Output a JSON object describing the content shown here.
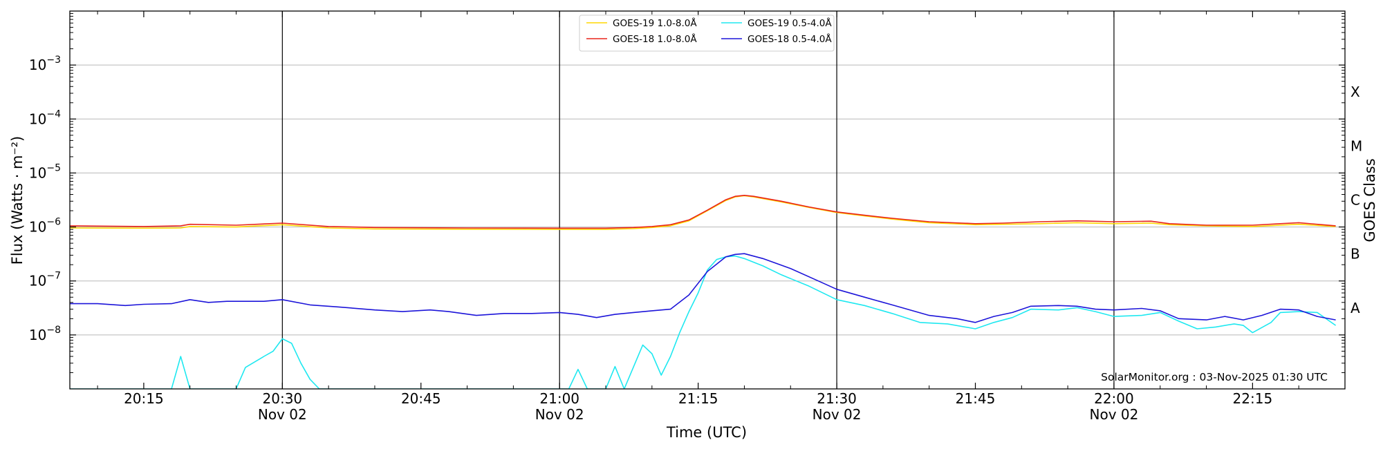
{
  "chart_data": {
    "type": "line",
    "xlabel": "Time (UTC)",
    "ylabel": "Flux (Watts · m⁻²)",
    "ylabel_right": "GOES Class",
    "x_range": [
      "2025-11-02 20:07",
      "2025-11-02 22:25"
    ],
    "y_scale": "log",
    "ylim": [
      1e-09,
      0.01
    ],
    "grid": "horizontal at decades",
    "legend_placement": "top-center",
    "x_ticks": [
      {
        "time": "20:15",
        "label": "20:15",
        "sub": ""
      },
      {
        "time": "20:30",
        "label": "20:30",
        "sub": "Nov 02"
      },
      {
        "time": "20:45",
        "label": "20:45",
        "sub": ""
      },
      {
        "time": "21:00",
        "label": "21:00",
        "sub": "Nov 02"
      },
      {
        "time": "21:15",
        "label": "21:15",
        "sub": ""
      },
      {
        "time": "21:30",
        "label": "21:30",
        "sub": "Nov 02"
      },
      {
        "time": "21:45",
        "label": "21:45",
        "sub": ""
      },
      {
        "time": "22:00",
        "label": "22:00",
        "sub": "Nov 02"
      },
      {
        "time": "22:15",
        "label": "22:15",
        "sub": ""
      }
    ],
    "vertical_lines": [
      "20:30",
      "21:00",
      "21:30",
      "22:00"
    ],
    "y_ticks": [
      {
        "base": "10",
        "exp": "−8",
        "value": 1e-08
      },
      {
        "base": "10",
        "exp": "−7",
        "value": 1e-07
      },
      {
        "base": "10",
        "exp": "−6",
        "value": 1e-06
      },
      {
        "base": "10",
        "exp": "−5",
        "value": 1e-05
      },
      {
        "base": "10",
        "exp": "−4",
        "value": 0.0001
      },
      {
        "base": "10",
        "exp": "−3",
        "value": 0.001
      }
    ],
    "goes_classes": [
      {
        "label": "A",
        "value": 3.16e-08
      },
      {
        "label": "B",
        "value": 3.16e-07
      },
      {
        "label": "C",
        "value": 3.16e-06
      },
      {
        "label": "M",
        "value": 3.16e-05
      },
      {
        "label": "X",
        "value": 0.000316
      }
    ],
    "watermark": "SolarMonitor.org : 03-Nov-2025 01:30 UTC",
    "series": [
      {
        "name": "GOES-19 1.0-8.0Å",
        "color": "#ffd700",
        "points": [
          [
            "20:07",
            9.6e-07
          ],
          [
            "20:15",
            9.5e-07
          ],
          [
            "20:19",
            9.6e-07
          ],
          [
            "20:20",
            1.02e-06
          ],
          [
            "20:25",
            1e-06
          ],
          [
            "20:30",
            1.1e-06
          ],
          [
            "20:35",
            9.6e-07
          ],
          [
            "20:40",
            9.2e-07
          ],
          [
            "20:50",
            9.1e-07
          ],
          [
            "21:00",
            9e-07
          ],
          [
            "21:05",
            9e-07
          ],
          [
            "21:08",
            9.3e-07
          ],
          [
            "21:10",
            9.8e-07
          ],
          [
            "21:12",
            1.05e-06
          ],
          [
            "21:14",
            1.3e-06
          ],
          [
            "21:16",
            2e-06
          ],
          [
            "21:18",
            3.1e-06
          ],
          [
            "21:19",
            3.6e-06
          ],
          [
            "21:20",
            3.8e-06
          ],
          [
            "21:21",
            3.6e-06
          ],
          [
            "21:24",
            2.9e-06
          ],
          [
            "21:27",
            2.3e-06
          ],
          [
            "21:30",
            1.85e-06
          ],
          [
            "21:33",
            1.6e-06
          ],
          [
            "21:36",
            1.4e-06
          ],
          [
            "21:40",
            1.2e-06
          ],
          [
            "21:45",
            1.1e-06
          ],
          [
            "21:48",
            1.12e-06
          ],
          [
            "21:52",
            1.15e-06
          ],
          [
            "21:56",
            1.2e-06
          ],
          [
            "22:00",
            1.15e-06
          ],
          [
            "22:04",
            1.18e-06
          ],
          [
            "22:06",
            1.1e-06
          ],
          [
            "22:10",
            1.05e-06
          ],
          [
            "22:15",
            1.02e-06
          ],
          [
            "22:18",
            1.08e-06
          ],
          [
            "22:20",
            1.12e-06
          ],
          [
            "22:24",
            1.02e-06
          ]
        ]
      },
      {
        "name": "GOES-18 1.0-8.0Å",
        "color": "#e8231a",
        "points": [
          [
            "20:07",
            1.05e-06
          ],
          [
            "20:15",
            1.02e-06
          ],
          [
            "20:19",
            1.05e-06
          ],
          [
            "20:20",
            1.12e-06
          ],
          [
            "20:25",
            1.08e-06
          ],
          [
            "20:30",
            1.18e-06
          ],
          [
            "20:35",
            1.02e-06
          ],
          [
            "20:40",
            9.8e-07
          ],
          [
            "20:50",
            9.6e-07
          ],
          [
            "21:00",
            9.5e-07
          ],
          [
            "21:05",
            9.5e-07
          ],
          [
            "21:08",
            9.8e-07
          ],
          [
            "21:10",
            1.02e-06
          ],
          [
            "21:12",
            1.1e-06
          ],
          [
            "21:14",
            1.35e-06
          ],
          [
            "21:16",
            2.05e-06
          ],
          [
            "21:18",
            3.2e-06
          ],
          [
            "21:19",
            3.7e-06
          ],
          [
            "21:20",
            3.85e-06
          ],
          [
            "21:21",
            3.7e-06
          ],
          [
            "21:24",
            3e-06
          ],
          [
            "21:27",
            2.35e-06
          ],
          [
            "21:30",
            1.9e-06
          ],
          [
            "21:33",
            1.65e-06
          ],
          [
            "21:36",
            1.45e-06
          ],
          [
            "21:40",
            1.25e-06
          ],
          [
            "21:45",
            1.15e-06
          ],
          [
            "21:48",
            1.18e-06
          ],
          [
            "21:52",
            1.25e-06
          ],
          [
            "21:56",
            1.3e-06
          ],
          [
            "22:00",
            1.25e-06
          ],
          [
            "22:04",
            1.28e-06
          ],
          [
            "22:06",
            1.15e-06
          ],
          [
            "22:10",
            1.08e-06
          ],
          [
            "22:15",
            1.08e-06
          ],
          [
            "22:18",
            1.15e-06
          ],
          [
            "22:20",
            1.2e-06
          ],
          [
            "22:24",
            1.05e-06
          ]
        ]
      },
      {
        "name": "GOES-19 0.5-4.0Å",
        "color": "#1ee8f0",
        "points": [
          [
            "20:07",
            1e-09
          ],
          [
            "20:18",
            1e-09
          ],
          [
            "20:19",
            4e-09
          ],
          [
            "20:20",
            1e-09
          ],
          [
            "20:25",
            1e-09
          ],
          [
            "20:26",
            2.5e-09
          ],
          [
            "20:28",
            4e-09
          ],
          [
            "20:29",
            5e-09
          ],
          [
            "20:30",
            8.5e-09
          ],
          [
            "20:31",
            7e-09
          ],
          [
            "20:32",
            3e-09
          ],
          [
            "20:33",
            1.5e-09
          ],
          [
            "20:34",
            1e-09
          ],
          [
            "21:00",
            1e-09
          ],
          [
            "21:01",
            1e-09
          ],
          [
            "21:02",
            2.3e-09
          ],
          [
            "21:03",
            1e-09
          ],
          [
            "21:05",
            1e-09
          ],
          [
            "21:06",
            2.6e-09
          ],
          [
            "21:07",
            1e-09
          ],
          [
            "21:09",
            6.5e-09
          ],
          [
            "21:10",
            4.5e-09
          ],
          [
            "21:11",
            1.8e-09
          ],
          [
            "21:12",
            4e-09
          ],
          [
            "21:13",
            1.1e-08
          ],
          [
            "21:14",
            2.7e-08
          ],
          [
            "21:15",
            6e-08
          ],
          [
            "21:16",
            1.6e-07
          ],
          [
            "21:17",
            2.5e-07
          ],
          [
            "21:18",
            2.8e-07
          ],
          [
            "21:19",
            2.9e-07
          ],
          [
            "21:20",
            2.6e-07
          ],
          [
            "21:22",
            1.9e-07
          ],
          [
            "21:24",
            1.3e-07
          ],
          [
            "21:27",
            8e-08
          ],
          [
            "21:30",
            4.5e-08
          ],
          [
            "21:33",
            3.5e-08
          ],
          [
            "21:36",
            2.5e-08
          ],
          [
            "21:39",
            1.7e-08
          ],
          [
            "21:42",
            1.6e-08
          ],
          [
            "21:45",
            1.3e-08
          ],
          [
            "21:47",
            1.7e-08
          ],
          [
            "21:49",
            2.1e-08
          ],
          [
            "21:51",
            3e-08
          ],
          [
            "21:54",
            2.9e-08
          ],
          [
            "21:56",
            3.2e-08
          ],
          [
            "21:58",
            2.7e-08
          ],
          [
            "22:00",
            2.2e-08
          ],
          [
            "22:03",
            2.3e-08
          ],
          [
            "22:05",
            2.6e-08
          ],
          [
            "22:07",
            1.8e-08
          ],
          [
            "22:09",
            1.3e-08
          ],
          [
            "22:11",
            1.4e-08
          ],
          [
            "22:13",
            1.6e-08
          ],
          [
            "22:14",
            1.5e-08
          ],
          [
            "22:15",
            1.1e-08
          ],
          [
            "22:17",
            1.7e-08
          ],
          [
            "22:18",
            2.6e-08
          ],
          [
            "22:20",
            2.7e-08
          ],
          [
            "22:22",
            2.6e-08
          ],
          [
            "22:24",
            1.5e-08
          ]
        ]
      },
      {
        "name": "GOES-18 0.5-4.0Å",
        "color": "#1c14d9",
        "points": [
          [
            "20:07",
            3.8e-08
          ],
          [
            "20:10",
            3.8e-08
          ],
          [
            "20:13",
            3.5e-08
          ],
          [
            "20:15",
            3.7e-08
          ],
          [
            "20:18",
            3.8e-08
          ],
          [
            "20:20",
            4.5e-08
          ],
          [
            "20:22",
            4e-08
          ],
          [
            "20:24",
            4.2e-08
          ],
          [
            "20:28",
            4.2e-08
          ],
          [
            "20:30",
            4.5e-08
          ],
          [
            "20:33",
            3.6e-08
          ],
          [
            "20:36",
            3.3e-08
          ],
          [
            "20:40",
            2.9e-08
          ],
          [
            "20:43",
            2.7e-08
          ],
          [
            "20:46",
            2.9e-08
          ],
          [
            "20:48",
            2.7e-08
          ],
          [
            "20:51",
            2.3e-08
          ],
          [
            "20:54",
            2.5e-08
          ],
          [
            "20:57",
            2.5e-08
          ],
          [
            "21:00",
            2.6e-08
          ],
          [
            "21:02",
            2.4e-08
          ],
          [
            "21:04",
            2.1e-08
          ],
          [
            "21:06",
            2.4e-08
          ],
          [
            "21:08",
            2.6e-08
          ],
          [
            "21:10",
            2.8e-08
          ],
          [
            "21:12",
            3e-08
          ],
          [
            "21:14",
            5.5e-08
          ],
          [
            "21:16",
            1.5e-07
          ],
          [
            "21:18",
            2.8e-07
          ],
          [
            "21:19",
            3.1e-07
          ],
          [
            "21:20",
            3.2e-07
          ],
          [
            "21:22",
            2.6e-07
          ],
          [
            "21:25",
            1.7e-07
          ],
          [
            "21:28",
            1e-07
          ],
          [
            "21:30",
            7e-08
          ],
          [
            "21:33",
            5e-08
          ],
          [
            "21:36",
            3.6e-08
          ],
          [
            "21:40",
            2.3e-08
          ],
          [
            "21:43",
            2e-08
          ],
          [
            "21:45",
            1.7e-08
          ],
          [
            "21:47",
            2.2e-08
          ],
          [
            "21:49",
            2.6e-08
          ],
          [
            "21:51",
            3.4e-08
          ],
          [
            "21:54",
            3.5e-08
          ],
          [
            "21:56",
            3.4e-08
          ],
          [
            "21:58",
            3e-08
          ],
          [
            "22:00",
            2.9e-08
          ],
          [
            "22:03",
            3.1e-08
          ],
          [
            "22:05",
            2.8e-08
          ],
          [
            "22:07",
            2e-08
          ],
          [
            "22:10",
            1.9e-08
          ],
          [
            "22:12",
            2.2e-08
          ],
          [
            "22:14",
            1.9e-08
          ],
          [
            "22:16",
            2.3e-08
          ],
          [
            "22:18",
            3e-08
          ],
          [
            "22:20",
            2.9e-08
          ],
          [
            "22:22",
            2.2e-08
          ],
          [
            "22:24",
            1.9e-08
          ]
        ]
      }
    ]
  }
}
